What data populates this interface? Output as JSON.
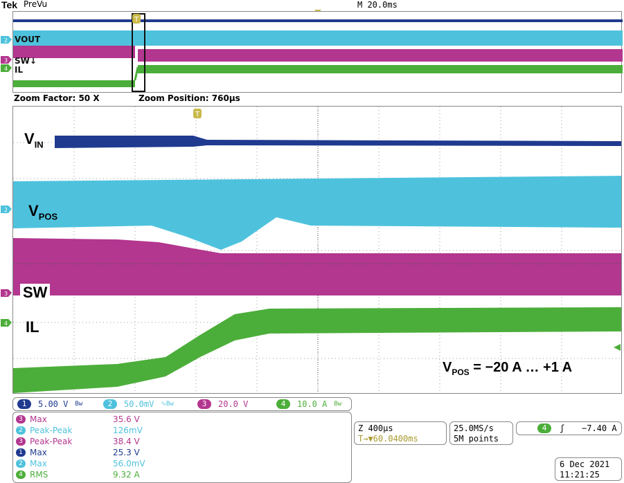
{
  "header": {
    "brand": "Tek",
    "mode": "PreVu",
    "timebase": "M 20.0ms"
  },
  "overview": {
    "labels": {
      "vout": "VOUT",
      "sw": "SW↓",
      "il": "IL"
    }
  },
  "zoom": {
    "factor": "Zoom Factor: 50 X",
    "position": "Zoom Position: 760µs"
  },
  "plot": {
    "labels": {
      "vin_main": "V",
      "vin_sub": "IN",
      "vpos_main": "V",
      "vpos_sub": "POS",
      "sw": "SW",
      "il": "IL"
    },
    "annotation": {
      "main": "V",
      "sub": "POS",
      "rest": " = −20 A … +1 A"
    }
  },
  "scale": [
    {
      "ch": "1",
      "value": "5.00 V",
      "suffix": "Bw",
      "color": "#1f3a8f"
    },
    {
      "ch": "2",
      "value": "50.0mV",
      "suffix": "∿Bw",
      "color": "#4ec2dd"
    },
    {
      "ch": "3",
      "value": "20.0 V",
      "suffix": "",
      "color": "#b3368f"
    },
    {
      "ch": "4",
      "value": "10.0 A",
      "suffix": "Bw",
      "color": "#4cae3a"
    }
  ],
  "measurements": [
    {
      "ch": "3",
      "name": "Max",
      "value": "35.6 V",
      "color": "#b3368f"
    },
    {
      "ch": "2",
      "name": "Peak-Peak",
      "value": "126mV",
      "color": "#4ec2dd"
    },
    {
      "ch": "3",
      "name": "Peak-Peak",
      "value": "38.4 V",
      "color": "#b3368f"
    },
    {
      "ch": "1",
      "name": "Max",
      "value": "25.3 V",
      "color": "#1f3a8f"
    },
    {
      "ch": "2",
      "name": "Max",
      "value": "56.0mV",
      "color": "#4ec2dd"
    },
    {
      "ch": "4",
      "name": "RMS",
      "value": "9.32 A",
      "color": "#4cae3a"
    }
  ],
  "zoom_box": {
    "line1": "Z 400µs",
    "line2": "T→▼60.0400ms"
  },
  "acq_box": {
    "line1": "25.0MS/s",
    "line2": "5M points"
  },
  "trigger_box": {
    "ch": "4",
    "slope": "ʃ",
    "level": "−7.40 A"
  },
  "date_box": {
    "date": "6 Dec  2021",
    "time": "11:21:25"
  },
  "colors": {
    "ch1": "#1f3a8f",
    "ch2": "#4ec2dd",
    "ch3": "#b3368f",
    "ch4": "#4cae3a",
    "trigger": "#c9b94a"
  }
}
